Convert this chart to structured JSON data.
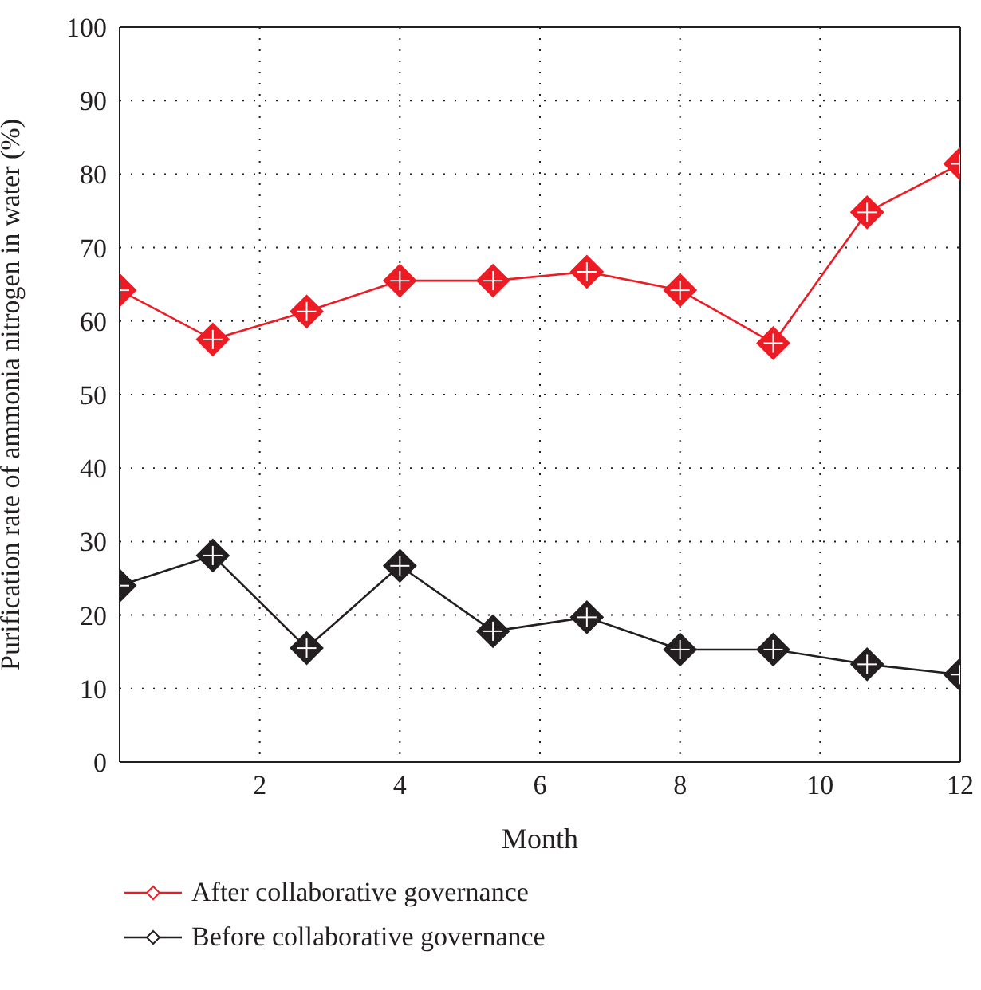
{
  "chart_data": {
    "type": "line",
    "xlabel": "Month",
    "ylabel": "Purification rate of ammonia nitrogen in water (%)",
    "x": [
      0,
      1.33,
      2.67,
      4,
      5.33,
      6.67,
      8,
      9.33,
      10.67,
      12
    ],
    "series": [
      {
        "name": "After collaborative governance",
        "color": "#ed1c24",
        "values": [
          64.2,
          57.5,
          61.3,
          65.5,
          65.5,
          66.7,
          64.2,
          57,
          74.8,
          81.4
        ]
      },
      {
        "name": "Before collaborative governance",
        "color": "#231f20",
        "values": [
          24,
          28.1,
          15.5,
          26.7,
          17.8,
          19.7,
          15.3,
          15.3,
          13.3,
          11.9
        ]
      }
    ],
    "xlim": [
      0,
      12
    ],
    "xticks": [
      2,
      4,
      6,
      8,
      10,
      12
    ],
    "ylim": [
      0,
      100
    ],
    "yticks": [
      0,
      10,
      20,
      30,
      40,
      50,
      60,
      70,
      80,
      90,
      100
    ],
    "grid": true,
    "legend": "bottom",
    "marker": "diamond",
    "line_style": "solid"
  }
}
